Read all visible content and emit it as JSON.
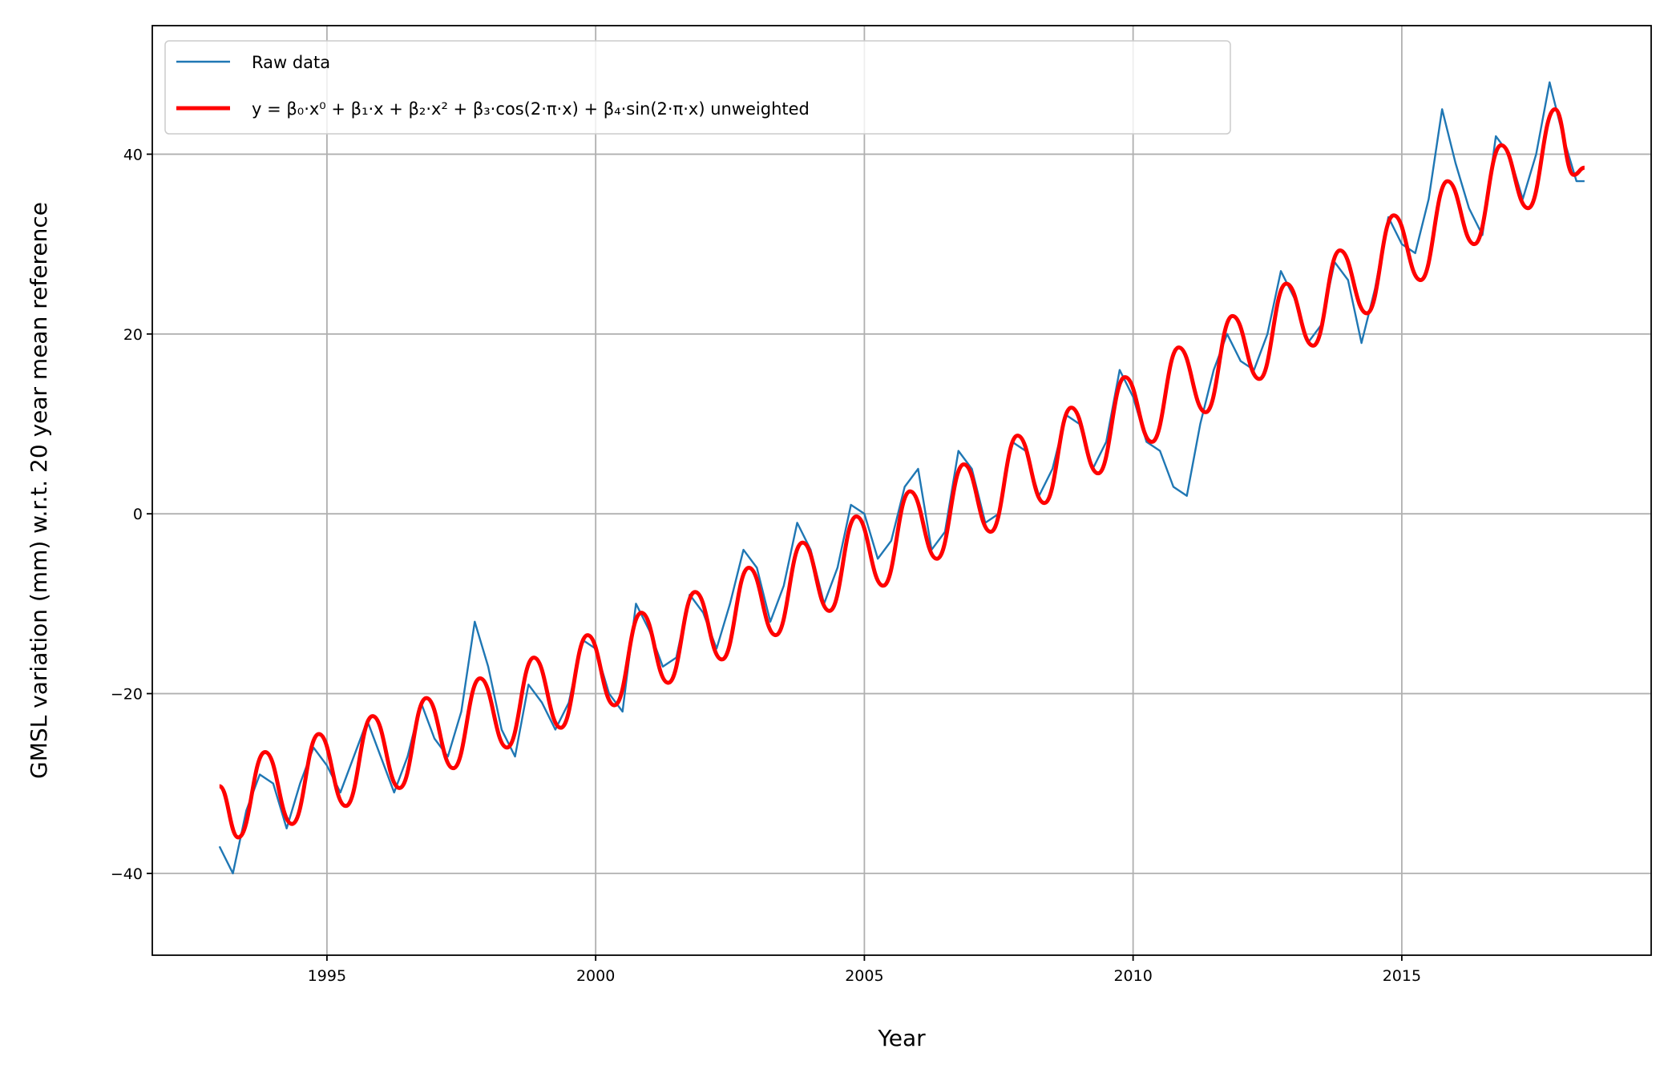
{
  "chart_data": {
    "type": "line",
    "xlabel": "Year",
    "ylabel": "GMSL variation (mm) w.r.t. 20 year mean reference",
    "xlim": [
      1991.75,
      2019.64
    ],
    "ylim": [
      -49.1,
      54.3
    ],
    "xticks": [
      1995,
      2000,
      2005,
      2010,
      2015
    ],
    "yticks": [
      {
        "value": -40,
        "label": "−40"
      },
      {
        "value": -20,
        "label": "−20"
      },
      0,
      20,
      40
    ],
    "grid": true,
    "legend": "upper left",
    "series": [
      {
        "name": "Raw data",
        "color": "#1f77b4",
        "width": 2.4,
        "smooth": false,
        "x": [
          1993.0,
          1993.25,
          1993.5,
          1993.75,
          1994.0,
          1994.25,
          1994.5,
          1994.75,
          1995.0,
          1995.25,
          1995.5,
          1995.75,
          1996.0,
          1996.25,
          1996.5,
          1996.75,
          1997.0,
          1997.25,
          1997.5,
          1997.75,
          1998.0,
          1998.25,
          1998.5,
          1998.75,
          1999.0,
          1999.25,
          1999.5,
          1999.75,
          2000.0,
          2000.25,
          2000.5,
          2000.75,
          2001.0,
          2001.25,
          2001.5,
          2001.75,
          2002.0,
          2002.25,
          2002.5,
          2002.75,
          2003.0,
          2003.25,
          2003.5,
          2003.75,
          2004.0,
          2004.25,
          2004.5,
          2004.75,
          2005.0,
          2005.25,
          2005.5,
          2005.75,
          2006.0,
          2006.25,
          2006.5,
          2006.75,
          2007.0,
          2007.25,
          2007.5,
          2007.75,
          2008.0,
          2008.25,
          2008.5,
          2008.75,
          2009.0,
          2009.25,
          2009.5,
          2009.75,
          2010.0,
          2010.25,
          2010.5,
          2010.75,
          2011.0,
          2011.25,
          2011.5,
          2011.75,
          2012.0,
          2012.25,
          2012.5,
          2012.75,
          2013.0,
          2013.25,
          2013.5,
          2013.75,
          2014.0,
          2014.25,
          2014.5,
          2014.75,
          2015.0,
          2015.25,
          2015.5,
          2015.75,
          2016.0,
          2016.25,
          2016.5,
          2016.75,
          2017.0,
          2017.25,
          2017.5,
          2017.75,
          2018.0,
          2018.25,
          2018.4
        ],
        "values": [
          -37,
          -40,
          -33,
          -29,
          -30,
          -35,
          -30,
          -26,
          -28,
          -31,
          -27,
          -23,
          -27,
          -31,
          -27,
          -21,
          -25,
          -27,
          -22,
          -12,
          -17,
          -24,
          -27,
          -19,
          -21,
          -24,
          -21,
          -14,
          -15,
          -20,
          -22,
          -10,
          -13,
          -17,
          -16,
          -9,
          -11,
          -15,
          -10,
          -4,
          -6,
          -12,
          -8,
          -1,
          -4,
          -10,
          -6,
          1,
          0,
          -5,
          -3,
          3,
          5,
          -4,
          -2,
          7,
          5,
          -1,
          0,
          8,
          7,
          2,
          5,
          11,
          10,
          5,
          8,
          16,
          13,
          8,
          7,
          3,
          2,
          10,
          16,
          20,
          17,
          16,
          20,
          27,
          24,
          19,
          21,
          28,
          26,
          19,
          25,
          33,
          30,
          29,
          35,
          45,
          39,
          34,
          31,
          42,
          40,
          35,
          40,
          48,
          42,
          37,
          37
        ]
      },
      {
        "name": "y = β₀·x⁰ + β₁·x + β₂·x² + β₃·cos(2·π·x) + β₄·sin(2·π·x) unweighted",
        "color": "#ff0000",
        "width": 5,
        "smooth": true,
        "x": [
          1993.0,
          1993.35,
          1993.85,
          1994.35,
          1994.85,
          1995.35,
          1995.85,
          1996.35,
          1996.85,
          1997.35,
          1997.85,
          1998.35,
          1998.85,
          1999.35,
          1999.85,
          2000.35,
          2000.85,
          2001.35,
          2001.85,
          2002.35,
          2002.85,
          2003.35,
          2003.85,
          2004.35,
          2004.85,
          2005.35,
          2005.85,
          2006.35,
          2006.85,
          2007.35,
          2007.85,
          2008.35,
          2008.85,
          2009.35,
          2009.85,
          2010.35,
          2010.85,
          2011.35,
          2011.85,
          2012.35,
          2012.85,
          2013.35,
          2013.85,
          2014.35,
          2014.85,
          2015.35,
          2015.85,
          2016.35,
          2016.85,
          2017.35,
          2017.85,
          2018.2,
          2018.4
        ],
        "values": [
          -30.3,
          -36,
          -26.5,
          -34.5,
          -24.5,
          -32.5,
          -22.5,
          -30.5,
          -20.5,
          -28.3,
          -18.3,
          -26,
          -16,
          -23.8,
          -13.5,
          -21.3,
          -11,
          -18.8,
          -8.7,
          -16.2,
          -6,
          -13.5,
          -3.2,
          -10.8,
          -0.3,
          -8,
          2.5,
          -5,
          5.5,
          -2,
          8.7,
          1.2,
          11.8,
          4.5,
          15.2,
          8,
          18.5,
          11.3,
          22,
          15,
          25.6,
          18.7,
          29.3,
          22.3,
          33.2,
          26,
          37,
          30,
          41,
          34,
          45,
          37.7,
          38.5
        ]
      }
    ]
  }
}
